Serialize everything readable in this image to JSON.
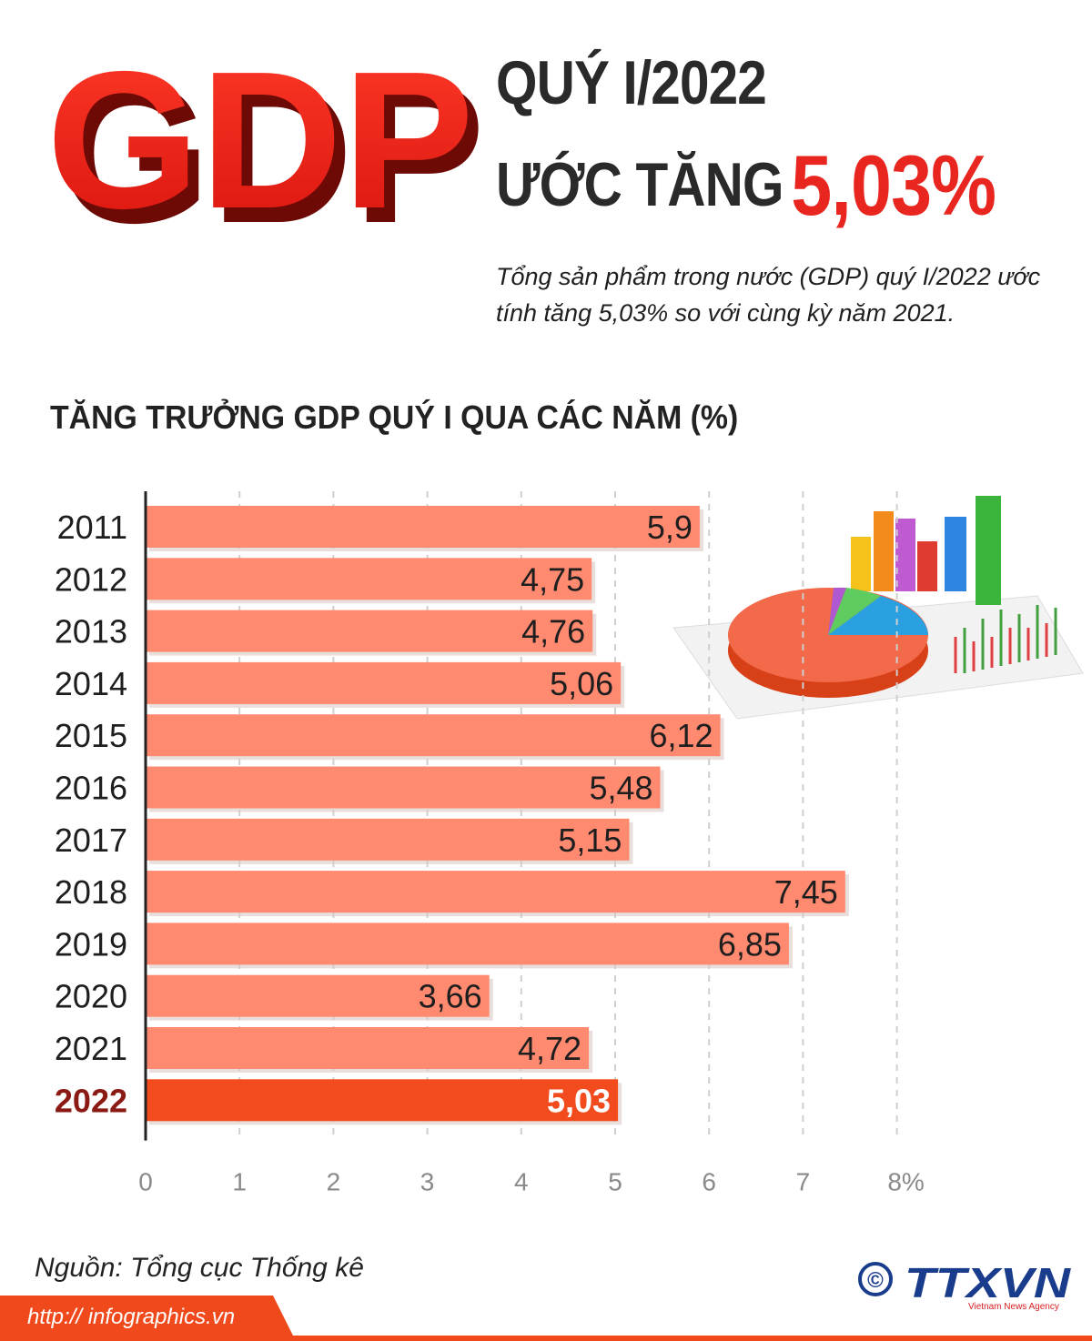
{
  "logo_text": "GDP",
  "headline": {
    "line1": "QUÝ I/2022",
    "line2_prefix": "ƯỚC TĂNG",
    "line2_value": "5,03%"
  },
  "subtitle": "Tổng sản phẩm trong nước (GDP) quý I/2022 ước tính tăng 5,03% so với cùng kỳ năm 2021.",
  "chart_data": {
    "type": "bar",
    "orientation": "horizontal",
    "title": "TĂNG TRƯỞNG GDP QUÝ I QUA CÁC NĂM (%)",
    "categories": [
      "2011",
      "2012",
      "2013",
      "2014",
      "2015",
      "2016",
      "2017",
      "2018",
      "2019",
      "2020",
      "2021",
      "2022"
    ],
    "values": [
      5.9,
      4.75,
      4.76,
      5.06,
      6.12,
      5.48,
      5.15,
      7.45,
      6.85,
      3.66,
      4.72,
      5.03
    ],
    "value_labels": [
      "5,9",
      "4,75",
      "4,76",
      "5,06",
      "6,12",
      "5,48",
      "5,15",
      "7,45",
      "6,85",
      "3,66",
      "4,72",
      "5,03"
    ],
    "highlight_category": "2022",
    "xlim": [
      0,
      8
    ],
    "x_ticks": [
      "0",
      "1",
      "2",
      "3",
      "4",
      "5",
      "6",
      "7",
      "8%"
    ],
    "grid": "dashed vertical",
    "colors": {
      "bar": "#ff8a70",
      "highlight_bar": "#f24c1e",
      "highlight_label": "#8b1a14"
    }
  },
  "source": "Nguồn: Tổng cục Thống kê",
  "footer": {
    "url": "http:// infographics.vn",
    "copyright": "©",
    "brand": "TTXVN",
    "brand_sub": "Vietnam News Agency"
  }
}
